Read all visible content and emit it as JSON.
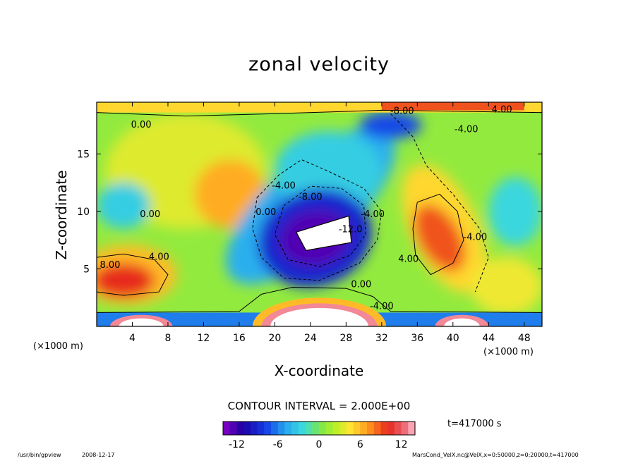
{
  "chart_data": {
    "type": "heatmap",
    "title": "zonal velocity",
    "xlabel": "X-coordinate",
    "ylabel": "Z-coordinate",
    "x_unit": "(×1000 m)",
    "y_unit": "(×1000 m)",
    "xlim": [
      0,
      50
    ],
    "ylim": [
      0,
      19.5
    ],
    "xticks": [
      4,
      8,
      12,
      16,
      20,
      24,
      28,
      32,
      36,
      40,
      44,
      48
    ],
    "yticks": [
      5,
      10,
      15
    ],
    "colorbar": {
      "range": [
        -14,
        14
      ],
      "ticks": [
        -12,
        -6,
        0,
        6,
        12
      ],
      "contour_interval_label": "CONTOUR INTERVAL = 2.000E+00"
    },
    "contour_labels": [
      {
        "text": "-8.00",
        "x": 24.0,
        "y": 11.0
      },
      {
        "text": "-8.00",
        "x": 34.3,
        "y": 18.5
      },
      {
        "text": "4.00",
        "x": 45.5,
        "y": 18.6
      },
      {
        "text": "-4.00",
        "x": 41.5,
        "y": 16.9
      },
      {
        "text": "0.00",
        "x": 5.0,
        "y": 17.3
      },
      {
        "text": "-4.00",
        "x": 21.0,
        "y": 12.0
      },
      {
        "text": "0.00",
        "x": 19.0,
        "y": 9.7
      },
      {
        "text": "0.00",
        "x": 6.0,
        "y": 9.5
      },
      {
        "text": "-4.00",
        "x": 31.0,
        "y": 9.5
      },
      {
        "text": "-12.0",
        "x": 28.5,
        "y": 8.2
      },
      {
        "text": "4.00",
        "x": 7.0,
        "y": 5.8
      },
      {
        "text": "8.00",
        "x": 1.5,
        "y": 5.1
      },
      {
        "text": "-4.00",
        "x": 42.5,
        "y": 7.5
      },
      {
        "text": "4.00",
        "x": 35.0,
        "y": 5.6
      },
      {
        "text": "0.00",
        "x": 29.7,
        "y": 3.4
      },
      {
        "text": "-4.00",
        "x": 32.0,
        "y": 1.5
      }
    ],
    "features": [
      {
        "label": "negative core",
        "x": 24.5,
        "y": 7.8,
        "value": -14
      },
      {
        "label": "positive jet right",
        "x": 38.5,
        "y": 7.7,
        "value": 11
      },
      {
        "label": "positive jet left",
        "x": 3.5,
        "y": 4.0,
        "value": 10
      },
      {
        "label": "bottom positive",
        "x": 25.0,
        "y": 0.4,
        "value": 14
      }
    ]
  },
  "annotations": {
    "time": "t=417000 s",
    "program": "/usr/bin/gpview",
    "date": "2008-12-17",
    "file": "MarsCond_VelX.nc@VelX,x=0:50000,z=0:20000,t=417000"
  }
}
